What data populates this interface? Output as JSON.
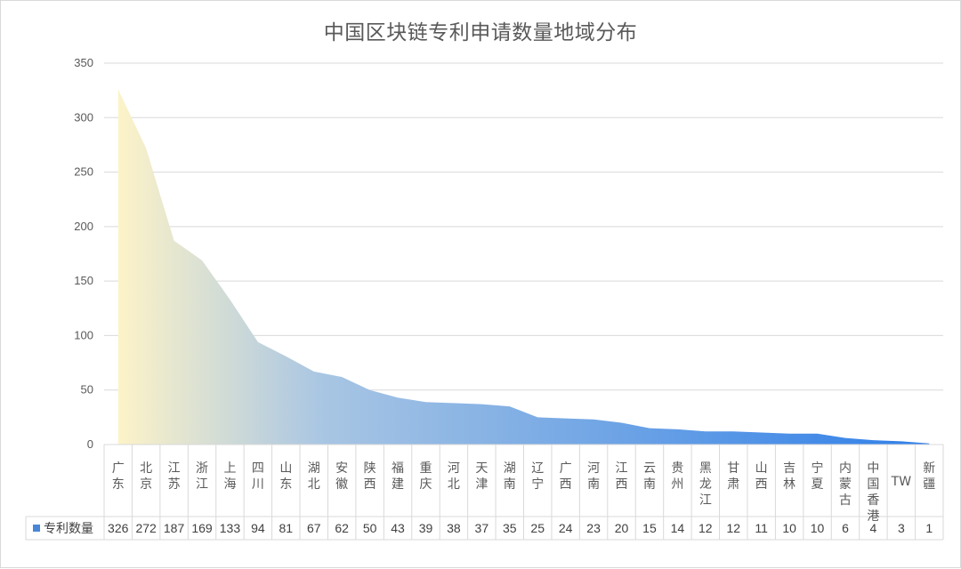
{
  "chart_data": {
    "type": "area",
    "title": "中国区块链专利申请数量地域分布",
    "categories": [
      "广东",
      "北京",
      "江苏",
      "浙江",
      "上海",
      "四川",
      "山东",
      "湖北",
      "安徽",
      "陕西",
      "福建",
      "重庆",
      "河北",
      "天津",
      "湖南",
      "辽宁",
      "广西",
      "河南",
      "江西",
      "云南",
      "贵州",
      "黑龙江",
      "甘肃",
      "山西",
      "吉林",
      "宁夏",
      "内蒙古",
      "中国香港",
      "TW",
      "新疆"
    ],
    "series": [
      {
        "name": "专利数量",
        "values": [
          326,
          272,
          187,
          169,
          133,
          94,
          81,
          67,
          62,
          50,
          43,
          39,
          38,
          37,
          35,
          25,
          24,
          23,
          20,
          15,
          14,
          12,
          12,
          11,
          10,
          10,
          6,
          4,
          3,
          1
        ]
      }
    ],
    "ylim": [
      0,
      350
    ],
    "yticks": [
      0,
      50,
      100,
      150,
      200,
      250,
      300,
      350
    ],
    "grid": true,
    "legend": "data-table-left",
    "colors": {
      "gradient_start": "#fdf3c8",
      "gradient_mid": "#a9c6e3",
      "gradient_end": "#2f7fe8",
      "grid": "#d9d9d9",
      "legend_key": "#4a86d8"
    }
  }
}
